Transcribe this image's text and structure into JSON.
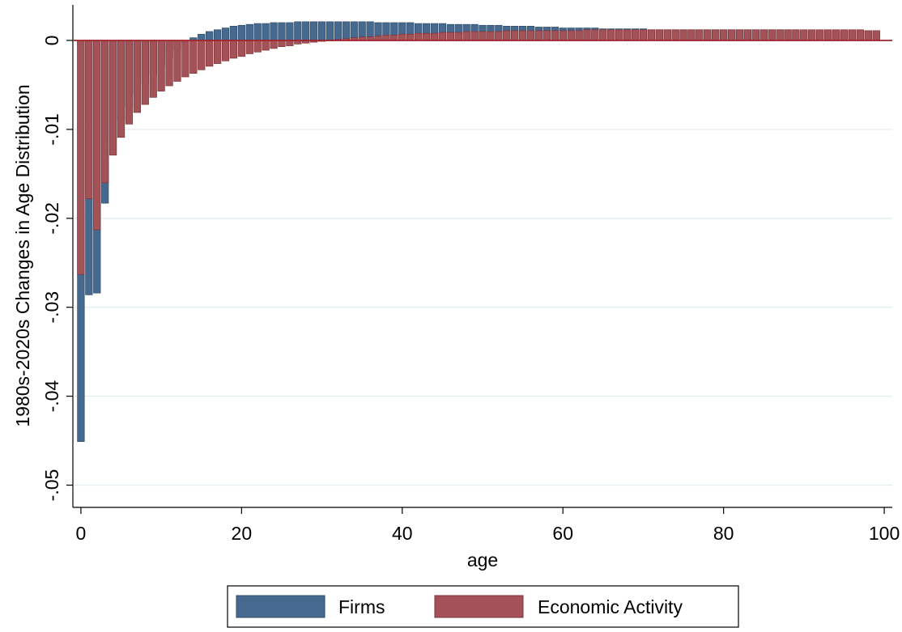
{
  "chart_data": {
    "type": "bar",
    "title": "",
    "xlabel": "age",
    "ylabel": "1980s-2020s Changes in Age Distribution",
    "xlim": [
      -1,
      101
    ],
    "ylim": [
      -0.0525,
      0.004
    ],
    "x_ticks": [
      0,
      20,
      40,
      60,
      80,
      100
    ],
    "x_tick_labels": [
      "0",
      "20",
      "40",
      "60",
      "80",
      "100"
    ],
    "y_ticks": [
      0,
      -0.01,
      -0.02,
      -0.03,
      -0.04,
      -0.05
    ],
    "y_tick_labels": [
      "0",
      "-.01",
      "-.02",
      "-.03",
      "-.04",
      "-.05"
    ],
    "grid": true,
    "legend_position": "bottom",
    "colors": {
      "firms": "#466a8f",
      "firms_edge": "#2e4a66",
      "activity": "#a35358",
      "activity_edge": "#7f3035",
      "grid": "#e3eef2",
      "zero_line": "#a3202c"
    },
    "x": [
      0,
      1,
      2,
      3,
      4,
      5,
      6,
      7,
      8,
      9,
      10,
      11,
      12,
      13,
      14,
      15,
      16,
      17,
      18,
      19,
      20,
      21,
      22,
      23,
      24,
      25,
      26,
      27,
      28,
      29,
      30,
      31,
      32,
      33,
      34,
      35,
      36,
      37,
      38,
      39,
      40,
      41,
      42,
      43,
      44,
      45,
      46,
      47,
      48,
      49,
      50,
      51,
      52,
      53,
      54,
      55,
      56,
      57,
      58,
      59,
      60,
      61,
      62,
      63,
      64,
      65,
      66,
      67,
      68,
      69,
      70,
      71,
      72,
      73,
      74,
      75,
      76,
      77,
      78,
      79,
      80,
      81,
      82,
      83,
      84,
      85,
      86,
      87,
      88,
      89,
      90,
      91,
      92,
      93,
      94,
      95,
      96,
      97,
      98,
      99
    ],
    "series": [
      {
        "name": "Firms",
        "values": [
          -0.0451,
          -0.0286,
          -0.0284,
          -0.0183,
          -0.011,
          -0.009,
          -0.0074,
          -0.006,
          -0.0048,
          -0.0038,
          -0.0028,
          -0.0019,
          -0.0011,
          -0.0002,
          0.0003,
          0.0007,
          0.001,
          0.0012,
          0.0014,
          0.0016,
          0.0017,
          0.0018,
          0.0019,
          0.0019,
          0.002,
          0.002,
          0.002,
          0.0021,
          0.0021,
          0.0021,
          0.0021,
          0.0021,
          0.0021,
          0.0021,
          0.0021,
          0.0021,
          0.0021,
          0.002,
          0.002,
          0.002,
          0.002,
          0.002,
          0.0019,
          0.0019,
          0.0019,
          0.0019,
          0.0018,
          0.0018,
          0.0018,
          0.0018,
          0.0017,
          0.0017,
          0.0017,
          0.0016,
          0.0016,
          0.0016,
          0.0016,
          0.0015,
          0.0015,
          0.0015,
          0.0014,
          0.0014,
          0.0014,
          0.0014,
          0.0014,
          0.0013,
          0.0013,
          0.0013,
          0.0013,
          0.0013,
          0.0013,
          0.0012,
          0.0012,
          0.0012,
          0.0012,
          0.0012,
          0.0012,
          0.0012,
          0.0012,
          0.0012,
          0.0012,
          0.0012,
          0.0012,
          0.0012,
          0.0012,
          0.0012,
          0.0012,
          0.0012,
          0.0012,
          0.0012,
          0.0011,
          0.0011,
          0.0011,
          0.0011,
          0.0011,
          0.0011,
          0.0011,
          0.0011,
          0.0011,
          0.0011
        ]
      },
      {
        "name": "Economic Activity",
        "values": [
          -0.0263,
          -0.0178,
          -0.0213,
          -0.016,
          -0.0129,
          -0.0109,
          -0.0094,
          -0.0081,
          -0.0072,
          -0.0064,
          -0.0057,
          -0.0051,
          -0.0046,
          -0.0041,
          -0.0037,
          -0.0033,
          -0.0029,
          -0.0026,
          -0.0023,
          -0.002,
          -0.0018,
          -0.0015,
          -0.0013,
          -0.0011,
          -0.0009,
          -0.0007,
          -0.0006,
          -0.0004,
          -0.0003,
          -0.0002,
          -0.0001,
          0.0,
          0.0001,
          0.0002,
          0.0003,
          0.0004,
          0.0004,
          0.0005,
          0.0006,
          0.0006,
          0.0007,
          0.0007,
          0.0008,
          0.0008,
          0.0008,
          0.0009,
          0.0009,
          0.0009,
          0.001,
          0.001,
          0.001,
          0.001,
          0.001,
          0.0011,
          0.0011,
          0.0011,
          0.0011,
          0.0011,
          0.0011,
          0.0011,
          0.0011,
          0.0011,
          0.0011,
          0.0012,
          0.0012,
          0.0012,
          0.0012,
          0.0012,
          0.0012,
          0.0012,
          0.0012,
          0.0012,
          0.0012,
          0.0012,
          0.0012,
          0.0012,
          0.0012,
          0.0012,
          0.0012,
          0.0012,
          0.0012,
          0.0012,
          0.0012,
          0.0012,
          0.0012,
          0.0012,
          0.0012,
          0.0012,
          0.0012,
          0.0012,
          0.0012,
          0.0012,
          0.0012,
          0.0012,
          0.0012,
          0.0012,
          0.0012,
          0.0012,
          0.0011,
          0.0011
        ]
      }
    ]
  }
}
